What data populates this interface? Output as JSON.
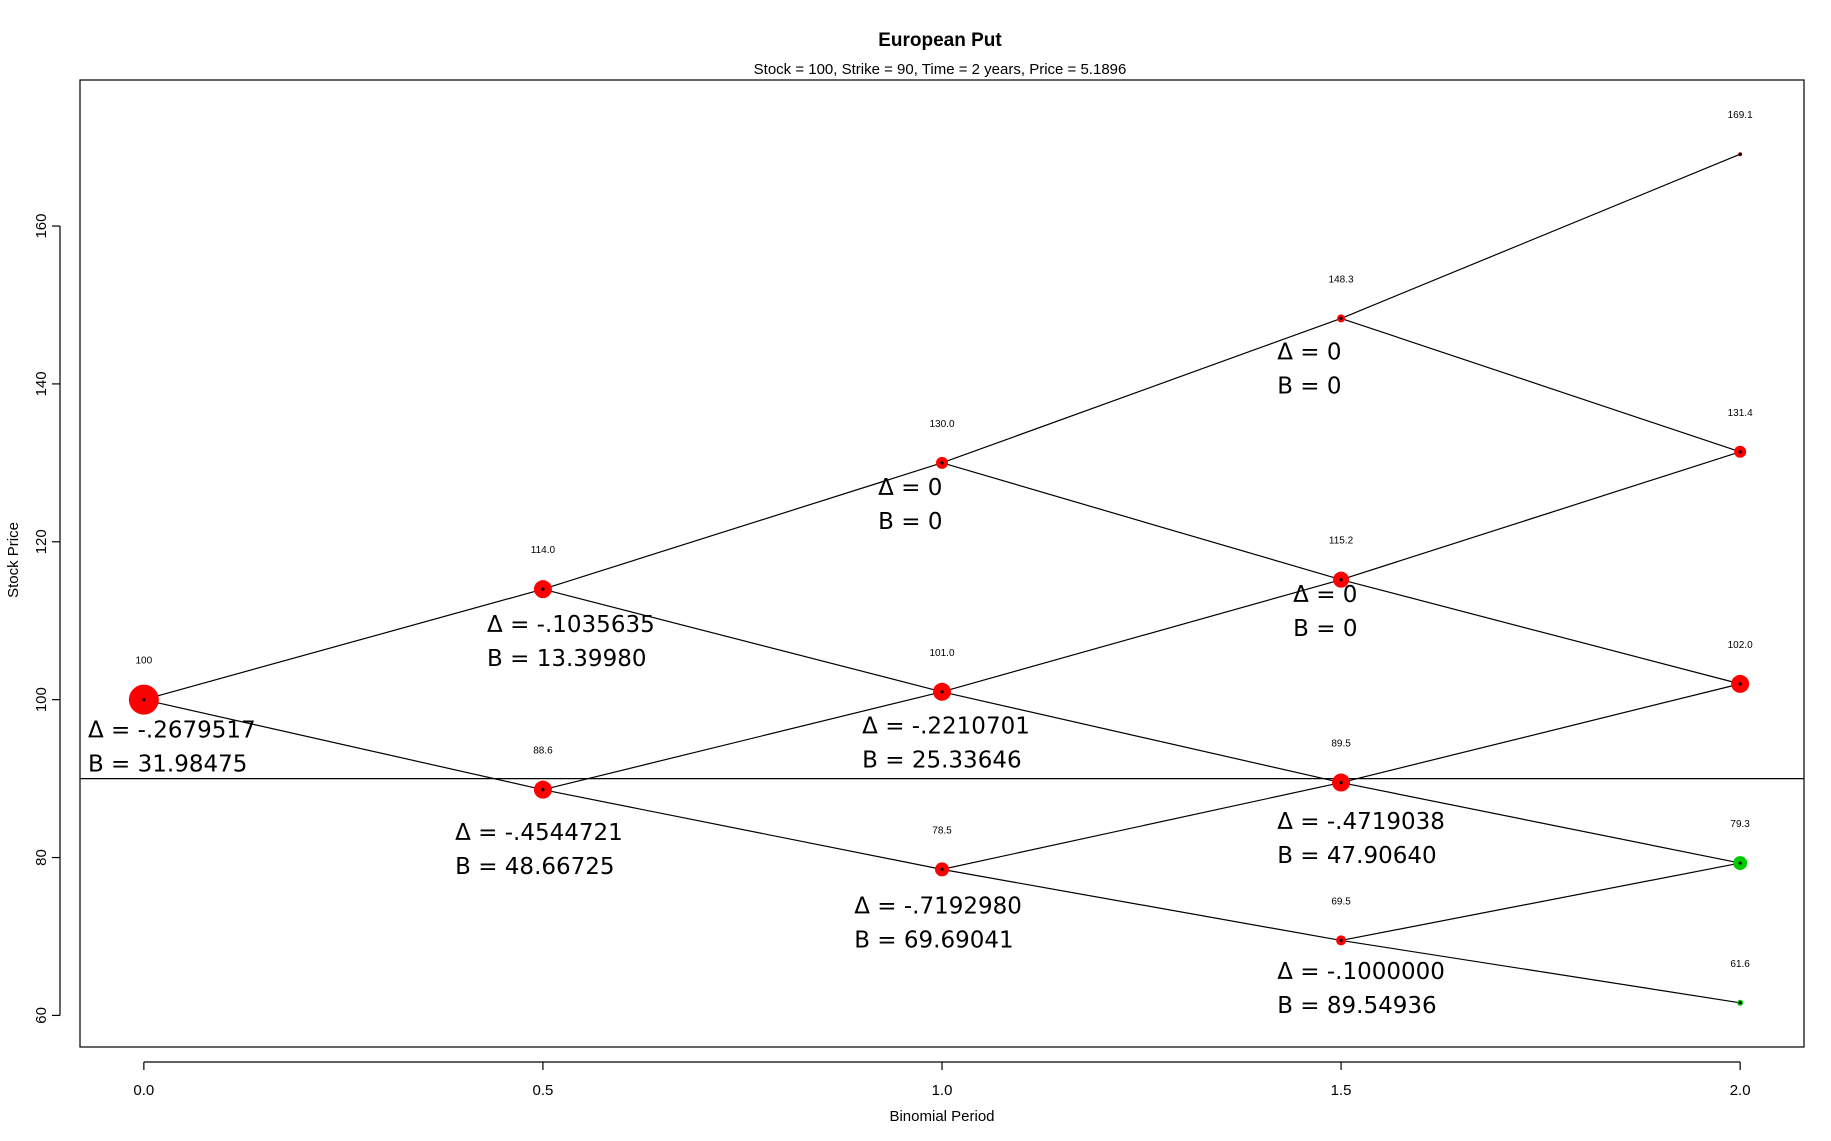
{
  "chart_data": {
    "type": "scatter",
    "title": "European Put",
    "subtitle": "Stock = 100, Strike = 90, Time = 2 years, Price = 5.1896",
    "xlabel": "Binomial Period",
    "ylabel": "Stock Price",
    "xlim": [
      -0.08,
      2.08
    ],
    "ylim": [
      56,
      178.5
    ],
    "xticks": [
      "0.0",
      "0.5",
      "1.0",
      "1.5",
      "2.0"
    ],
    "xtick_values": [
      0,
      0.5,
      1,
      1.5,
      2
    ],
    "yticks": [
      "60",
      "80",
      "100",
      "120",
      "140",
      "160"
    ],
    "ytick_values": [
      60,
      80,
      100,
      120,
      140,
      160
    ],
    "strike": 90,
    "colors": {
      "in_the_money": "#ff0000",
      "out_of_money": "#00cc00",
      "line": "#000000"
    },
    "nodes": [
      {
        "x": 0.0,
        "y": 100.0,
        "label": "100",
        "size": 15,
        "color": "#ff0000"
      },
      {
        "x": 0.5,
        "y": 114.0,
        "label": "114.0",
        "size": 9,
        "color": "#ff0000"
      },
      {
        "x": 0.5,
        "y": 88.6,
        "label": "88.6",
        "size": 9,
        "color": "#ff0000"
      },
      {
        "x": 1.0,
        "y": 130.0,
        "label": "130.0",
        "size": 6,
        "color": "#ff0000"
      },
      {
        "x": 1.0,
        "y": 101.0,
        "label": "101.0",
        "size": 9,
        "color": "#ff0000"
      },
      {
        "x": 1.0,
        "y": 78.5,
        "label": "78.5",
        "size": 7,
        "color": "#ff0000"
      },
      {
        "x": 1.5,
        "y": 148.3,
        "label": "148.3",
        "size": 4,
        "color": "#ff0000"
      },
      {
        "x": 1.5,
        "y": 115.2,
        "label": "115.2",
        "size": 8,
        "color": "#ff0000"
      },
      {
        "x": 1.5,
        "y": 89.5,
        "label": "89.5",
        "size": 9,
        "color": "#ff0000"
      },
      {
        "x": 1.5,
        "y": 69.5,
        "label": "69.5",
        "size": 5,
        "color": "#ff0000"
      },
      {
        "x": 2.0,
        "y": 169.1,
        "label": "169.1",
        "size": 2,
        "color": "#ff0000"
      },
      {
        "x": 2.0,
        "y": 131.4,
        "label": "131.4",
        "size": 6,
        "color": "#ff0000"
      },
      {
        "x": 2.0,
        "y": 102.0,
        "label": "102.0",
        "size": 9,
        "color": "#ff0000"
      },
      {
        "x": 2.0,
        "y": 79.3,
        "label": "79.3",
        "size": 7,
        "color": "#00cc00"
      },
      {
        "x": 2.0,
        "y": 61.6,
        "label": "61.6",
        "size": 3,
        "color": "#00cc00"
      }
    ],
    "edges": [
      [
        0,
        1
      ],
      [
        0,
        2
      ],
      [
        1,
        3
      ],
      [
        1,
        4
      ],
      [
        2,
        4
      ],
      [
        2,
        5
      ],
      [
        3,
        6
      ],
      [
        3,
        7
      ],
      [
        4,
        7
      ],
      [
        4,
        8
      ],
      [
        5,
        8
      ],
      [
        5,
        9
      ],
      [
        6,
        10
      ],
      [
        6,
        11
      ],
      [
        7,
        11
      ],
      [
        7,
        12
      ],
      [
        8,
        12
      ],
      [
        8,
        13
      ],
      [
        9,
        13
      ],
      [
        9,
        14
      ]
    ],
    "annotations": [
      {
        "x": -0.07,
        "y": 95.2,
        "delta": "Δ = -.2679517",
        "b": "B = 31.98475"
      },
      {
        "x": 0.43,
        "y": 108.6,
        "delta": "Δ = -.1035635",
        "b": "B = 13.39980"
      },
      {
        "x": 0.39,
        "y": 82.2,
        "delta": "Δ = -.4544721",
        "b": "B = 48.66725"
      },
      {
        "x": 0.92,
        "y": 125.9,
        "delta": "Δ = 0",
        "b": "B = 0"
      },
      {
        "x": 0.9,
        "y": 95.7,
        "delta": "Δ = -.2210701",
        "b": "B = 25.33646"
      },
      {
        "x": 0.89,
        "y": 72.9,
        "delta": "Δ = -.7192980",
        "b": "B = 69.69041"
      },
      {
        "x": 1.42,
        "y": 143.1,
        "delta": "Δ = 0",
        "b": "B = 0"
      },
      {
        "x": 1.44,
        "y": 112.4,
        "delta": "Δ = 0",
        "b": "B = 0"
      },
      {
        "x": 1.42,
        "y": 83.6,
        "delta": "Δ = -.4719038",
        "b": "B = 47.90640"
      },
      {
        "x": 1.42,
        "y": 64.6,
        "delta": "Δ = -.1000000",
        "b": "B = 89.54936"
      }
    ]
  }
}
